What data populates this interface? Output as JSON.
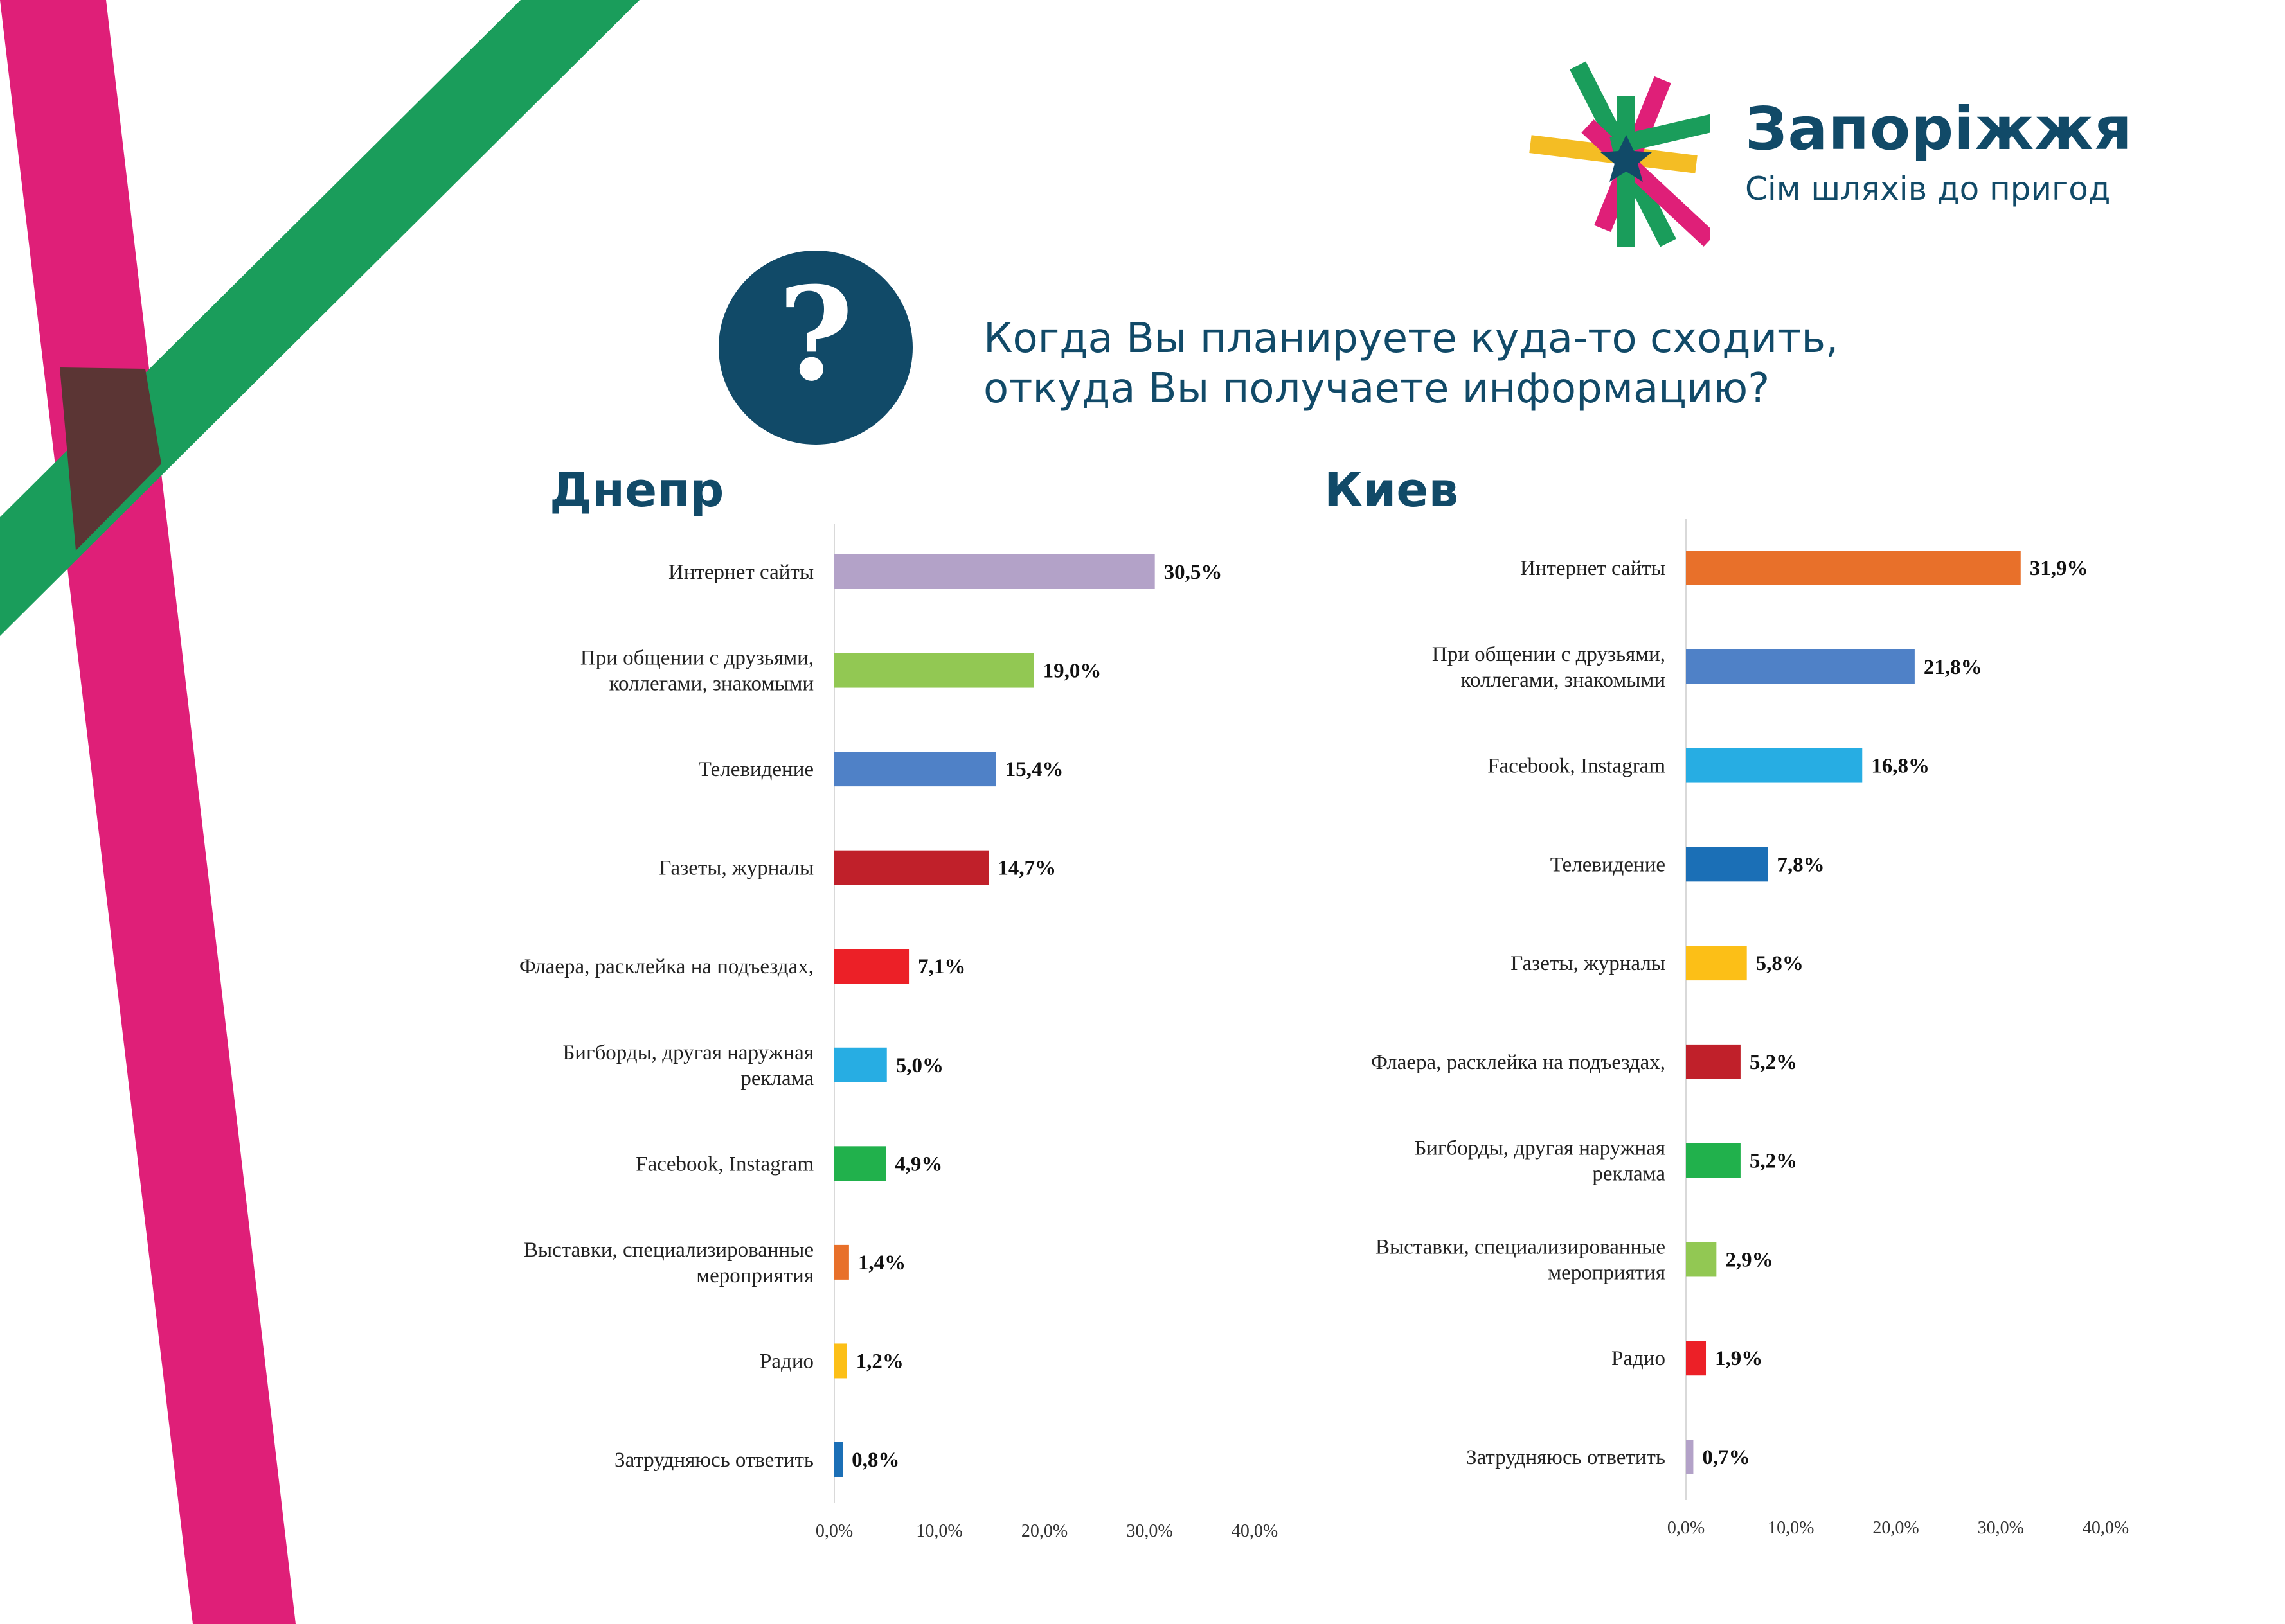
{
  "brand": {
    "name": "Запоріжжя",
    "tagline": "Сім шляхів до пригод",
    "logo_colors": [
      "#1a9d5b",
      "#df1f78",
      "#f4bd24",
      "#114a68"
    ]
  },
  "question_icon": "question-mark-icon",
  "question": {
    "line1": "Когда Вы планируете куда-то сходить,",
    "line2": "откуда Вы получаете информацию?"
  },
  "chart_data": [
    {
      "type": "bar",
      "orientation": "horizontal",
      "title": "Днепр",
      "categories": [
        [
          "Интернет сайты"
        ],
        [
          "При общении с друзьями,",
          "коллегами, знакомыми"
        ],
        [
          "Телевидение"
        ],
        [
          "Газеты, журналы"
        ],
        [
          "Флаера, расклейка на подъездах,"
        ],
        [
          "Бигборды, другая наружная",
          "реклама"
        ],
        [
          "Facebook, Instagram"
        ],
        [
          "Выставки, специализированные",
          "мероприятия"
        ],
        [
          "Радио"
        ],
        [
          "Затрудняюсь ответить"
        ]
      ],
      "values": [
        30.5,
        19.0,
        15.4,
        14.7,
        7.1,
        5.0,
        4.9,
        1.4,
        1.2,
        0.8
      ],
      "value_labels": [
        "30,5%",
        "19,0%",
        "15,4%",
        "14,7%",
        "7,1%",
        "5,0%",
        "4,9%",
        "1,4%",
        "1,2%",
        "0,8%"
      ],
      "colors": [
        "#b3a2c8",
        "#92c853",
        "#4f81c7",
        "#c0202a",
        "#ec2027",
        "#27ade3",
        "#21b14c",
        "#e8702a",
        "#fcbf17",
        "#1b6fb6"
      ],
      "ticks": [
        "0,0%",
        "10,0%",
        "20,0%",
        "30,0%",
        "40,0%"
      ],
      "xlim": [
        0,
        40
      ]
    },
    {
      "type": "bar",
      "orientation": "horizontal",
      "title": "Киев",
      "categories": [
        [
          "Интернет сайты"
        ],
        [
          "При общении с друзьями,",
          "коллегами, знакомыми"
        ],
        [
          "Facebook, Instagram"
        ],
        [
          "Телевидение"
        ],
        [
          "Газеты, журналы"
        ],
        [
          "Флаера, расклейка на подъездах,"
        ],
        [
          "Бигборды, другая наружная",
          "реклама"
        ],
        [
          "Выставки, специализированные",
          "мероприятия"
        ],
        [
          "Радио"
        ],
        [
          "Затрудняюсь ответить"
        ]
      ],
      "values": [
        31.9,
        21.8,
        16.8,
        7.8,
        5.8,
        5.2,
        5.2,
        2.9,
        1.9,
        0.7
      ],
      "value_labels": [
        "31,9%",
        "21,8%",
        "16,8%",
        "7,8%",
        "5,8%",
        "5,2%",
        "5,2%",
        "2,9%",
        "1,9%",
        "0,7%"
      ],
      "colors": [
        "#e8702a",
        "#4f81c7",
        "#27ade3",
        "#1b6fb6",
        "#fcbf17",
        "#c0202a",
        "#21b14c",
        "#92c853",
        "#ec2027",
        "#b3a2c8"
      ],
      "ticks": [
        "0,0%",
        "10,0%",
        "20,0%",
        "30,0%",
        "40,0%"
      ],
      "xlim": [
        0,
        40
      ]
    }
  ]
}
